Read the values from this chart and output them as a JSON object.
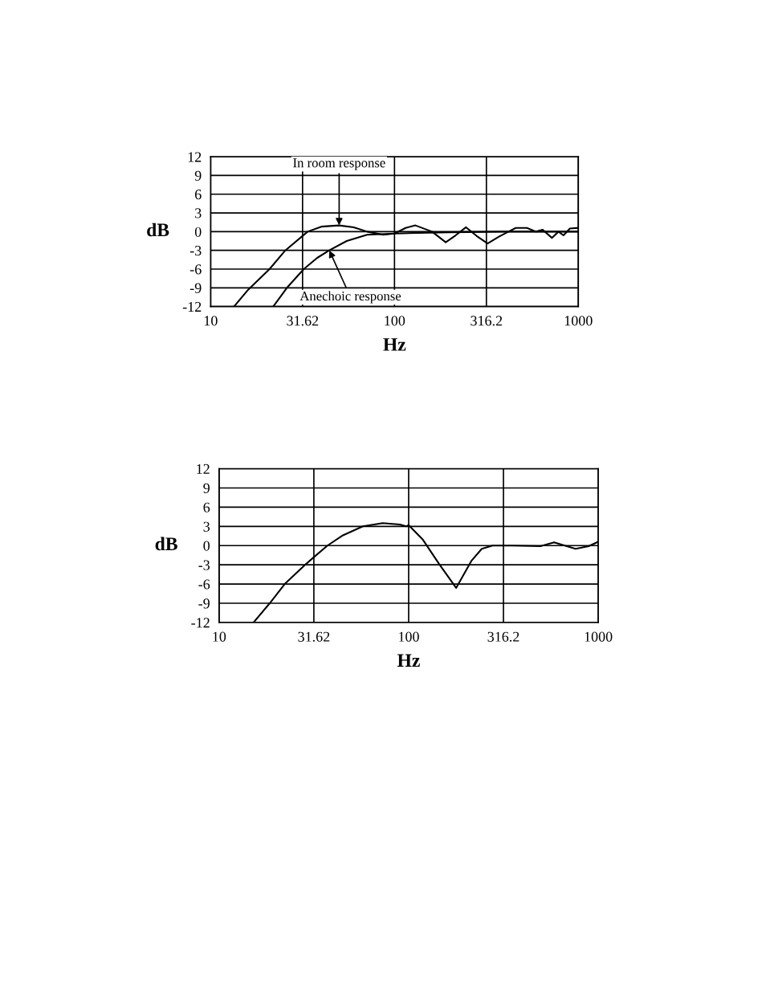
{
  "chart_data": [
    {
      "type": "line",
      "xlabel": "Hz",
      "ylabel": "dB",
      "log": "x",
      "grid": true,
      "legend": false,
      "xlim": [
        10,
        1000
      ],
      "xticks": [
        10,
        31.62,
        100,
        316.2,
        1000
      ],
      "ylim": [
        -12,
        12
      ],
      "yticks": [
        -12,
        -9,
        -6,
        -3,
        0,
        3,
        6,
        9,
        12
      ],
      "series": [
        {
          "color": "#000000",
          "x": [
            13.4,
            16,
            20.9,
            25.5,
            33.7,
            40,
            50,
            60,
            71,
            87,
            100,
            115,
            130,
            160,
            190,
            215,
            245,
            280,
            321,
            370,
            417,
            457,
            525,
            588,
            640,
            718,
            780,
            830,
            900,
            1000
          ],
          "values": [
            -12,
            -9.3,
            -6,
            -3,
            0,
            0.8,
            1,
            0.7,
            0,
            -0.5,
            -0.3,
            0.6,
            1,
            0,
            -1.7,
            -0.6,
            0.7,
            -0.7,
            -1.9,
            -0.8,
            0,
            0.6,
            0.6,
            0,
            0.3,
            -1,
            0,
            -0.6,
            0.5,
            0.6
          ]
        },
        {
          "color": "#000000",
          "x": [
            21.9,
            26,
            32.1,
            38,
            44.2,
            55,
            71,
            85,
            100,
            200,
            400,
            1000
          ],
          "values": [
            -12,
            -9,
            -6,
            -4.2,
            -3,
            -1.5,
            -0.5,
            -0.4,
            -0.3,
            -0.1,
            0,
            0
          ]
        }
      ],
      "annotations": [
        {
          "text": "In room response",
          "x": 50,
          "y": 1
        },
        {
          "text": "Anechoic response",
          "x": 44.2,
          "y": -3
        }
      ]
    },
    {
      "type": "line",
      "xlabel": "Hz",
      "ylabel": "dB",
      "log": "x",
      "grid": true,
      "legend": false,
      "xlim": [
        10,
        1000
      ],
      "xticks": [
        10,
        31.62,
        100,
        316.2,
        1000
      ],
      "ylim": [
        -12,
        12
      ],
      "yticks": [
        -12,
        -9,
        -6,
        -3,
        0,
        3,
        6,
        9,
        12
      ],
      "series": [
        {
          "color": "#000000",
          "x": [
            15.2,
            18.5,
            22.2,
            28.4,
            31.62,
            37.3,
            45,
            57.3,
            73,
            90,
            97,
            100,
            119,
            145,
            178,
            214,
            243,
            277,
            350,
            495,
            585,
            759,
            890,
            1000
          ],
          "values": [
            -12,
            -9,
            -6,
            -3,
            -1.8,
            0,
            1.6,
            3,
            3.5,
            3.3,
            3,
            3.2,
            0.9,
            -2.9,
            -6.6,
            -2.4,
            -0.5,
            0,
            0,
            -0.1,
            0.5,
            -0.5,
            -0.1,
            0.6
          ]
        }
      ]
    }
  ]
}
